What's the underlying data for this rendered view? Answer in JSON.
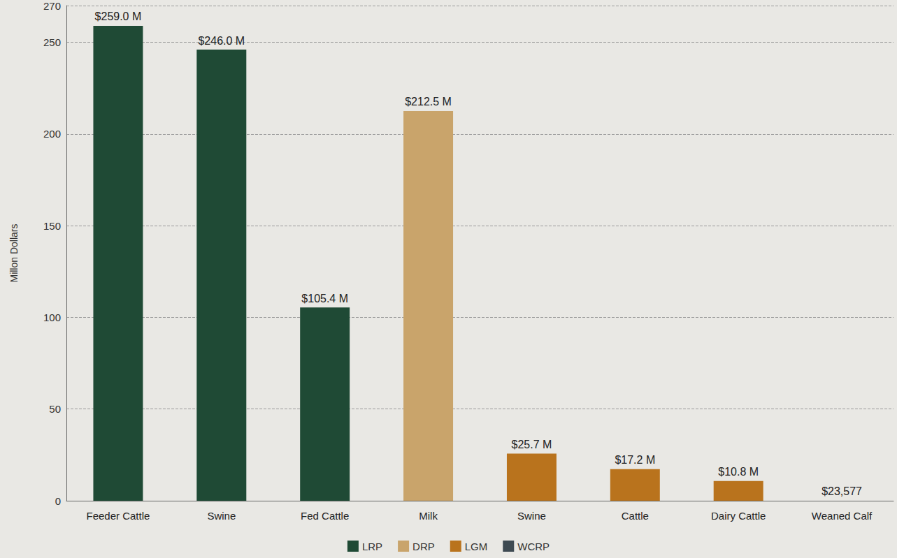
{
  "chart_data": {
    "type": "bar",
    "y_label": "Millon Dollars",
    "categories": [
      "Feeder Cattle",
      "Swine",
      "Fed Cattle",
      "Milk",
      "Swine",
      "Cattle",
      "Dairy Cattle",
      "Weaned Calf"
    ],
    "series": [
      {
        "name": "LRP",
        "color": "#1f4a35",
        "values": [
          259.0,
          246.0,
          105.4,
          null,
          null,
          null,
          null,
          null
        ],
        "value_labels": [
          "$259.0 M",
          "$246.0 M",
          "$105.4 M",
          null,
          null,
          null,
          null,
          null
        ]
      },
      {
        "name": "DRP",
        "color": "#c9a46b",
        "values": [
          null,
          null,
          null,
          212.5,
          null,
          null,
          null,
          null
        ],
        "value_labels": [
          null,
          null,
          null,
          "$212.5 M",
          null,
          null,
          null,
          null
        ]
      },
      {
        "name": "LGM",
        "color": "#b9731d",
        "values": [
          null,
          null,
          null,
          null,
          25.7,
          17.2,
          10.8,
          null
        ],
        "value_labels": [
          null,
          null,
          null,
          null,
          "$25.7 M",
          "$17.2 M",
          "$10.8 M",
          null
        ]
      },
      {
        "name": "WCRP",
        "color": "#3e4a52",
        "values": [
          null,
          null,
          null,
          null,
          null,
          null,
          null,
          0.023577
        ],
        "value_labels": [
          null,
          null,
          null,
          null,
          null,
          null,
          null,
          "$23,577"
        ]
      }
    ],
    "ylim": [
      0,
      270
    ],
    "yticks": [
      0,
      50,
      100,
      150,
      200,
      250
    ],
    "grid": true,
    "legend": "bottom",
    "data_labels": true
  }
}
